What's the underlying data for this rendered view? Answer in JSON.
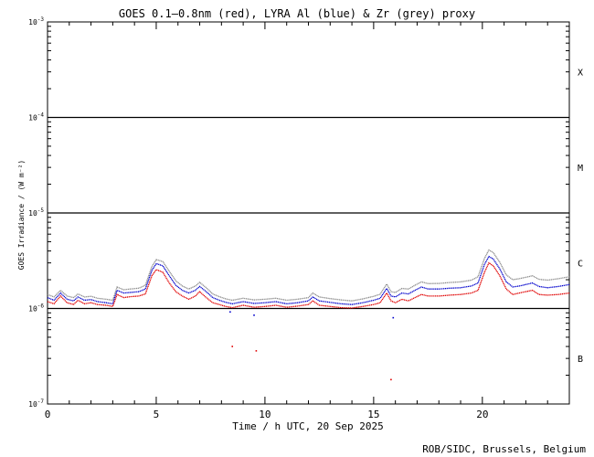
{
  "chart_data": {
    "type": "line",
    "title": "GOES 0.1–0.8nm (red), LYRA Al (blue) & Zr (grey) proxy",
    "xlabel": "Time / h UTC, 20 Sep 2025",
    "ylabel": "GOES Irradiance / (W m⁻²)",
    "xlim": [
      0,
      24
    ],
    "ylim": [
      1e-07,
      0.001
    ],
    "yscale": "log",
    "x_ticks": [
      0,
      5,
      10,
      15,
      20
    ],
    "y_ticks": [
      {
        "base": "10",
        "exp": "-3",
        "value": 0.001
      },
      {
        "base": "10",
        "exp": "-4",
        "value": 0.0001
      },
      {
        "base": "10",
        "exp": "-5",
        "value": 1e-05
      },
      {
        "base": "10",
        "exp": "-6",
        "value": 1e-06
      },
      {
        "base": "10",
        "exp": "-7",
        "value": 1e-07
      }
    ],
    "flare_classes": [
      {
        "label": "X",
        "value": 0.0003
      },
      {
        "label": "M",
        "value": 3e-05
      },
      {
        "label": "C",
        "value": 3e-06
      },
      {
        "label": "B",
        "value": 3e-07
      }
    ],
    "class_thresholds": [
      0.0001,
      1e-05,
      1e-06
    ],
    "x": [
      0,
      0.3,
      0.6,
      0.9,
      1.2,
      1.4,
      1.7,
      2.0,
      2.3,
      2.7,
      3.0,
      3.2,
      3.5,
      3.8,
      4.2,
      4.5,
      4.8,
      5.0,
      5.3,
      5.6,
      5.9,
      6.2,
      6.5,
      6.8,
      7.0,
      7.3,
      7.6,
      7.9,
      8.2,
      8.5,
      9.0,
      9.5,
      10.0,
      10.5,
      11.0,
      11.5,
      12.0,
      12.2,
      12.5,
      13.0,
      13.5,
      14.0,
      14.5,
      15.0,
      15.3,
      15.6,
      15.8,
      16.0,
      16.3,
      16.6,
      16.9,
      17.2,
      17.5,
      18.0,
      18.5,
      19.0,
      19.5,
      19.8,
      20.1,
      20.3,
      20.5,
      20.8,
      21.1,
      21.4,
      21.7,
      22.0,
      22.3,
      22.6,
      23.0,
      23.5,
      24.0
    ],
    "series": [
      {
        "name": "GOES 0.1–0.8nm",
        "color": "#e00000",
        "values": [
          1.18e-06,
          1.12e-06,
          1.35e-06,
          1.15e-06,
          1.1e-06,
          1.22e-06,
          1.12e-06,
          1.15e-06,
          1.1e-06,
          1.08e-06,
          1.05e-06,
          1.4e-06,
          1.3e-06,
          1.33e-06,
          1.35e-06,
          1.42e-06,
          2.2e-06,
          2.55e-06,
          2.4e-06,
          1.85e-06,
          1.5e-06,
          1.35e-06,
          1.25e-06,
          1.35e-06,
          1.5e-06,
          1.3e-06,
          1.15e-06,
          1.1e-06,
          1.05e-06,
          1.02e-06,
          1.08e-06,
          1.03e-06,
          1.05e-06,
          1.08e-06,
          1.03e-06,
          1.06e-06,
          1.1e-06,
          1.2e-06,
          1.08e-06,
          1.05e-06,
          1.02e-06,
          1.01e-06,
          1.05e-06,
          1.1e-06,
          1.15e-06,
          1.45e-06,
          1.2e-06,
          1.15e-06,
          1.25e-06,
          1.2e-06,
          1.3e-06,
          1.4e-06,
          1.35e-06,
          1.35e-06,
          1.38e-06,
          1.4e-06,
          1.45e-06,
          1.55e-06,
          2.4e-06,
          3e-06,
          2.8e-06,
          2.2e-06,
          1.6e-06,
          1.4e-06,
          1.45e-06,
          1.5e-06,
          1.55e-06,
          1.4e-06,
          1.38e-06,
          1.4e-06,
          1.45e-06
        ]
      },
      {
        "name": "LYRA Al",
        "color": "#0000cc",
        "values": [
          1.3e-06,
          1.22e-06,
          1.45e-06,
          1.25e-06,
          1.2e-06,
          1.32e-06,
          1.22e-06,
          1.24e-06,
          1.18e-06,
          1.15e-06,
          1.12e-06,
          1.55e-06,
          1.45e-06,
          1.47e-06,
          1.5e-06,
          1.6e-06,
          2.5e-06,
          2.95e-06,
          2.8e-06,
          2.2e-06,
          1.75e-06,
          1.55e-06,
          1.45e-06,
          1.55e-06,
          1.7e-06,
          1.5e-06,
          1.3e-06,
          1.22e-06,
          1.16e-06,
          1.12e-06,
          1.18e-06,
          1.13e-06,
          1.15e-06,
          1.18e-06,
          1.12e-06,
          1.15e-06,
          1.2e-06,
          1.32e-06,
          1.2e-06,
          1.16e-06,
          1.12e-06,
          1.1e-06,
          1.15e-06,
          1.22e-06,
          1.28e-06,
          1.62e-06,
          1.35e-06,
          1.32e-06,
          1.45e-06,
          1.42e-06,
          1.55e-06,
          1.68e-06,
          1.6e-06,
          1.6e-06,
          1.63e-06,
          1.65e-06,
          1.72e-06,
          1.85e-06,
          2.9e-06,
          3.5e-06,
          3.3e-06,
          2.6e-06,
          1.9e-06,
          1.68e-06,
          1.72e-06,
          1.78e-06,
          1.85e-06,
          1.7e-06,
          1.65e-06,
          1.7e-06,
          1.78e-06
        ]
      },
      {
        "name": "LYRA Zr",
        "color": "#8c8c8c",
        "values": [
          1.4e-06,
          1.32e-06,
          1.55e-06,
          1.35e-06,
          1.3e-06,
          1.42e-06,
          1.32e-06,
          1.34e-06,
          1.28e-06,
          1.25e-06,
          1.22e-06,
          1.68e-06,
          1.57e-06,
          1.6e-06,
          1.63e-06,
          1.75e-06,
          2.75e-06,
          3.25e-06,
          3.1e-06,
          2.45e-06,
          1.95e-06,
          1.72e-06,
          1.6e-06,
          1.72e-06,
          1.88e-06,
          1.65e-06,
          1.42e-06,
          1.33e-06,
          1.26e-06,
          1.22e-06,
          1.28e-06,
          1.23e-06,
          1.25e-06,
          1.28e-06,
          1.22e-06,
          1.25e-06,
          1.3e-06,
          1.45e-06,
          1.32e-06,
          1.27e-06,
          1.23e-06,
          1.2e-06,
          1.26e-06,
          1.34e-06,
          1.41e-06,
          1.8e-06,
          1.5e-06,
          1.47e-06,
          1.62e-06,
          1.6e-06,
          1.75e-06,
          1.9e-06,
          1.82e-06,
          1.83e-06,
          1.87e-06,
          1.9e-06,
          1.98e-06,
          2.15e-06,
          3.35e-06,
          4.1e-06,
          3.85e-06,
          3.05e-06,
          2.25e-06,
          2e-06,
          2.05e-06,
          2.12e-06,
          2.2e-06,
          2.02e-06,
          1.98e-06,
          2.05e-06,
          2.15e-06
        ]
      }
    ],
    "stray_points": [
      {
        "color": "#e00000",
        "x": [
          8.5,
          9.6,
          15.8
        ],
        "y": [
          4e-07,
          3.6e-07,
          1.8e-07
        ]
      },
      {
        "color": "#0000cc",
        "x": [
          8.4,
          9.5,
          15.9
        ],
        "y": [
          9.2e-07,
          8.5e-07,
          8e-07
        ]
      }
    ],
    "grid": false,
    "credit": "ROB/SIDC, Brussels, Belgium"
  }
}
